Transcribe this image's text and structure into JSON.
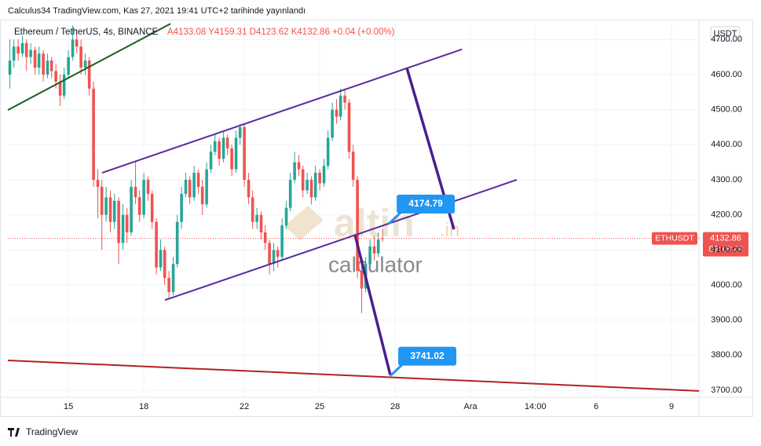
{
  "chart_data": {
    "type": "candlestick",
    "header": "Calculus34 TradingView.com, Kas 27, 2021 19:41 UTC+2 tarihinde yayınlandı",
    "symbol_title": "Ethereum / TetherUS, 4s, BINANCE",
    "ohlc_legend": "A4133.08 Y4159.31 D4123.62 K4132.86 +0.04 (+0.00%)",
    "currency": "USDT",
    "symbol": "ETHUSDT",
    "countdown": "02:18:29",
    "watermark": [
      "altin",
      ".in",
      "calculator"
    ],
    "footer": "TradingView",
    "up_color": "#26a69a",
    "down_color": "#ef5350",
    "grid": true,
    "xlim": [
      12.59,
      40.09
    ],
    "xticks": [
      15,
      18,
      22,
      25,
      28,
      {
        "value": 31,
        "label": "Ara"
      },
      {
        "value": 33.58,
        "label": "14:00"
      },
      {
        "value": 36,
        "label": "6"
      },
      {
        "value": 39,
        "label": "9"
      }
    ],
    "ylim": [
      3682,
      4750
    ],
    "yticks": [
      {
        "value": 3700,
        "label": "3700.00"
      },
      {
        "value": 3800,
        "label": "3800.00"
      },
      {
        "value": 3900,
        "label": "3900.00"
      },
      {
        "value": 4000,
        "label": "4000.00"
      },
      {
        "value": 4100,
        "label": "4100.00"
      },
      {
        "value": 4200,
        "label": "4200.00"
      },
      {
        "value": 4300,
        "label": "4300.00"
      },
      {
        "value": 4400,
        "label": "4400.00"
      },
      {
        "value": 4500,
        "label": "4500.00"
      },
      {
        "value": 4600,
        "label": "4600.00"
      },
      {
        "value": 4700,
        "label": "4700.00"
      }
    ],
    "x": [
      12.67,
      12.83,
      13,
      13.17,
      13.33,
      13.5,
      13.67,
      13.83,
      14,
      14.17,
      14.33,
      14.5,
      14.67,
      14.83,
      15,
      15.17,
      15.33,
      15.5,
      15.67,
      15.83,
      16,
      16.17,
      16.33,
      16.5,
      16.67,
      16.83,
      17,
      17.17,
      17.33,
      17.5,
      17.67,
      17.83,
      18,
      18.17,
      18.33,
      18.5,
      18.67,
      18.83,
      19,
      19.17,
      19.33,
      19.5,
      19.67,
      19.83,
      20,
      20.17,
      20.33,
      20.5,
      20.67,
      20.83,
      21,
      21.17,
      21.33,
      21.5,
      21.67,
      21.83,
      22,
      22.17,
      22.33,
      22.5,
      22.67,
      22.83,
      23,
      23.17,
      23.33,
      23.5,
      23.67,
      23.83,
      24,
      24.17,
      24.33,
      24.5,
      24.67,
      24.83,
      25,
      25.17,
      25.33,
      25.5,
      25.67,
      25.83,
      26,
      26.17,
      26.33,
      26.5,
      26.67,
      26.83,
      27,
      27.17,
      27.33,
      27.5
    ],
    "ohlc": [
      [
        4600,
        4700,
        4560,
        4640
      ],
      [
        4640,
        4700,
        4620,
        4680
      ],
      [
        4680,
        4700,
        4640,
        4660
      ],
      [
        4660,
        4710,
        4650,
        4690
      ],
      [
        4690,
        4700,
        4610,
        4650
      ],
      [
        4650,
        4690,
        4630,
        4670
      ],
      [
        4670,
        4680,
        4600,
        4620
      ],
      [
        4620,
        4680,
        4600,
        4660
      ],
      [
        4660,
        4670,
        4580,
        4600
      ],
      [
        4600,
        4660,
        4590,
        4640
      ],
      [
        4640,
        4650,
        4590,
        4610
      ],
      [
        4610,
        4630,
        4560,
        4580
      ],
      [
        4580,
        4600,
        4510,
        4540
      ],
      [
        4540,
        4620,
        4530,
        4600
      ],
      [
        4600,
        4670,
        4590,
        4650
      ],
      [
        4650,
        4740,
        4640,
        4700
      ],
      [
        4700,
        4730,
        4660,
        4680
      ],
      [
        4680,
        4700,
        4600,
        4620
      ],
      [
        4620,
        4660,
        4600,
        4640
      ],
      [
        4640,
        4650,
        4540,
        4560
      ],
      [
        4560,
        4580,
        4280,
        4300
      ],
      [
        4300,
        4330,
        4190,
        4280
      ],
      [
        4280,
        4300,
        4100,
        4200
      ],
      [
        4200,
        4280,
        4180,
        4250
      ],
      [
        4250,
        4270,
        4150,
        4180
      ],
      [
        4180,
        4260,
        4160,
        4240
      ],
      [
        4240,
        4250,
        4060,
        4120
      ],
      [
        4120,
        4230,
        4100,
        4200
      ],
      [
        4200,
        4220,
        4120,
        4150
      ],
      [
        4150,
        4300,
        4140,
        4280
      ],
      [
        4280,
        4350,
        4230,
        4250
      ],
      [
        4250,
        4270,
        4180,
        4200
      ],
      [
        4200,
        4320,
        4190,
        4300
      ],
      [
        4300,
        4310,
        4240,
        4260
      ],
      [
        4260,
        4270,
        4160,
        4180
      ],
      [
        4180,
        4190,
        4030,
        4050
      ],
      [
        4050,
        4130,
        4040,
        4100
      ],
      [
        4100,
        4110,
        4000,
        4020
      ],
      [
        4020,
        4040,
        3960,
        3980
      ],
      [
        3980,
        4080,
        3970,
        4060
      ],
      [
        4060,
        4200,
        4050,
        4180
      ],
      [
        4180,
        4280,
        4160,
        4260
      ],
      [
        4260,
        4320,
        4250,
        4300
      ],
      [
        4300,
        4310,
        4230,
        4250
      ],
      [
        4250,
        4340,
        4240,
        4320
      ],
      [
        4320,
        4330,
        4260,
        4280
      ],
      [
        4280,
        4300,
        4200,
        4230
      ],
      [
        4230,
        4350,
        4220,
        4330
      ],
      [
        4330,
        4400,
        4320,
        4380
      ],
      [
        4380,
        4430,
        4370,
        4410
      ],
      [
        4410,
        4420,
        4340,
        4360
      ],
      [
        4360,
        4440,
        4350,
        4420
      ],
      [
        4420,
        4430,
        4370,
        4390
      ],
      [
        4390,
        4400,
        4310,
        4330
      ],
      [
        4330,
        4440,
        4320,
        4420
      ],
      [
        4420,
        4460,
        4400,
        4450
      ],
      [
        4450,
        4460,
        4280,
        4300
      ],
      [
        4300,
        4320,
        4230,
        4250
      ],
      [
        4250,
        4270,
        4160,
        4180
      ],
      [
        4180,
        4220,
        4160,
        4200
      ],
      [
        4200,
        4210,
        4130,
        4150
      ],
      [
        4150,
        4170,
        4100,
        4120
      ],
      [
        4120,
        4130,
        4030,
        4060
      ],
      [
        4060,
        4120,
        4040,
        4100
      ],
      [
        4100,
        4110,
        4050,
        4080
      ],
      [
        4080,
        4190,
        4070,
        4170
      ],
      [
        4170,
        4240,
        4160,
        4220
      ],
      [
        4220,
        4320,
        4210,
        4300
      ],
      [
        4300,
        4380,
        4290,
        4350
      ],
      [
        4350,
        4370,
        4310,
        4330
      ],
      [
        4330,
        4340,
        4250,
        4270
      ],
      [
        4270,
        4320,
        4260,
        4300
      ],
      [
        4300,
        4310,
        4230,
        4250
      ],
      [
        4250,
        4340,
        4240,
        4320
      ],
      [
        4320,
        4330,
        4270,
        4290
      ],
      [
        4290,
        4360,
        4280,
        4340
      ],
      [
        4340,
        4440,
        4330,
        4420
      ],
      [
        4420,
        4520,
        4410,
        4500
      ],
      [
        4500,
        4530,
        4460,
        4480
      ],
      [
        4480,
        4560,
        4470,
        4540
      ],
      [
        4540,
        4560,
        4500,
        4520
      ],
      [
        4520,
        4530,
        4360,
        4380
      ],
      [
        4380,
        4400,
        4280,
        4300
      ],
      [
        4300,
        4310,
        4020,
        4040
      ],
      [
        4040,
        4070,
        3920,
        3990
      ],
      [
        3990,
        4080,
        3980,
        4060
      ],
      [
        4060,
        4130,
        4050,
        4110
      ],
      [
        4110,
        4140,
        4070,
        4090
      ],
      [
        4090,
        4150,
        4080,
        4130
      ],
      [
        4133.08,
        4159.31,
        4123.62,
        4132.86
      ]
    ],
    "drawings": [
      {
        "color": "#1b5e20",
        "line_width": 2,
        "points": [
          [
            12.59,
            4499
          ],
          [
            19.06,
            4745
          ]
        ]
      },
      {
        "color": "#5b2a9e",
        "line_width": 2,
        "points": [
          [
            16.34,
            4320
          ],
          [
            30.66,
            4672
          ]
        ]
      },
      {
        "color": "#5b2a9e",
        "line_width": 2,
        "points": [
          [
            18.84,
            3957
          ],
          [
            32.84,
            4300
          ]
        ]
      },
      {
        "color": "#4a1f8f",
        "line_width": 3.5,
        "points": [
          [
            28.47,
            4618
          ],
          [
            30.34,
            4159
          ]
        ]
      },
      {
        "color": "#4a1f8f",
        "line_width": 3.5,
        "points": [
          [
            26.41,
            4141
          ],
          [
            27.81,
            3743
          ]
        ]
      },
      {
        "color": "#b22222",
        "line_width": 2,
        "points": [
          [
            12.59,
            3785
          ],
          [
            40.09,
            3698
          ]
        ]
      }
    ],
    "price_labels": [
      {
        "day": 27.75,
        "value": 4174.79,
        "color": "#2196f3"
      },
      {
        "day": 27.81,
        "value": 3741.02,
        "color": "#2196f3"
      }
    ]
  }
}
